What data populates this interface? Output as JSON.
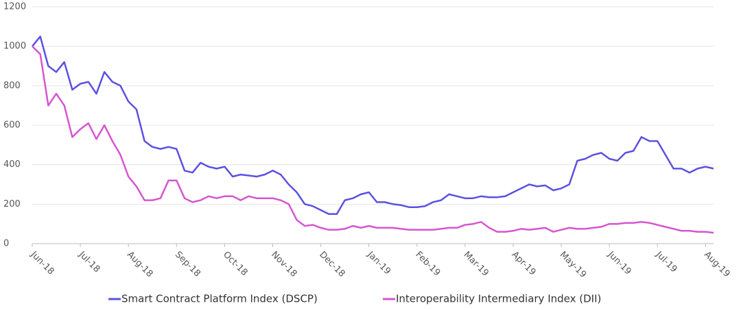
{
  "chart_data": {
    "type": "line",
    "categories": [
      "Jun-18",
      null,
      null,
      null,
      null,
      null,
      "Jul-18",
      null,
      null,
      null,
      null,
      null,
      "Aug-18",
      null,
      null,
      null,
      null,
      null,
      "Sep-18",
      null,
      null,
      null,
      null,
      null,
      "Oct-18",
      null,
      null,
      null,
      null,
      null,
      "Nov-18",
      null,
      null,
      null,
      null,
      null,
      "Dec-18",
      null,
      null,
      null,
      null,
      null,
      "Jan-19",
      null,
      null,
      null,
      null,
      null,
      "Feb-19",
      null,
      null,
      null,
      null,
      null,
      "Mar-19",
      null,
      null,
      null,
      null,
      null,
      "Apr-19",
      null,
      null,
      null,
      null,
      null,
      "May-19",
      null,
      null,
      null,
      null,
      null,
      "Jun-19",
      null,
      null,
      null,
      null,
      null,
      "Jul-19",
      null,
      null,
      null,
      null,
      null,
      "Aug-19",
      null
    ],
    "series": [
      {
        "name": "Smart Contract Platform Index (DSCP)",
        "color": "#5b50e0",
        "values": [
          1000,
          1050,
          900,
          870,
          920,
          780,
          810,
          820,
          760,
          870,
          820,
          800,
          720,
          680,
          520,
          490,
          480,
          490,
          480,
          370,
          360,
          410,
          390,
          380,
          390,
          340,
          350,
          345,
          340,
          350,
          370,
          350,
          300,
          260,
          200,
          190,
          170,
          150,
          150,
          220,
          230,
          250,
          260,
          210,
          210,
          200,
          195,
          185,
          185,
          190,
          210,
          220,
          250,
          240,
          230,
          230,
          240,
          235,
          235,
          240,
          260,
          280,
          300,
          290,
          295,
          270,
          280,
          300,
          420,
          430,
          450,
          460,
          430,
          420,
          460,
          470,
          540,
          520,
          520,
          450,
          380,
          380,
          360,
          380,
          390,
          380
        ]
      },
      {
        "name": "Interoperability Intermediary Index (DII)",
        "color": "#d655d0",
        "values": [
          1000,
          960,
          700,
          760,
          700,
          540,
          580,
          610,
          530,
          600,
          520,
          450,
          340,
          290,
          220,
          220,
          230,
          320,
          320,
          230,
          210,
          220,
          240,
          230,
          240,
          240,
          220,
          240,
          230,
          230,
          230,
          220,
          200,
          120,
          90,
          95,
          80,
          70,
          70,
          75,
          90,
          80,
          90,
          80,
          80,
          80,
          75,
          70,
          70,
          70,
          70,
          75,
          80,
          80,
          95,
          100,
          110,
          80,
          60,
          60,
          65,
          75,
          70,
          75,
          80,
          60,
          70,
          80,
          75,
          75,
          80,
          85,
          100,
          100,
          105,
          105,
          110,
          105,
          95,
          85,
          75,
          65,
          65,
          60,
          60,
          55
        ]
      }
    ],
    "ylim": [
      0,
      1200
    ],
    "yticks": [
      0,
      200,
      400,
      600,
      800,
      1000,
      1200
    ],
    "grid": true,
    "legend": "bottom"
  }
}
